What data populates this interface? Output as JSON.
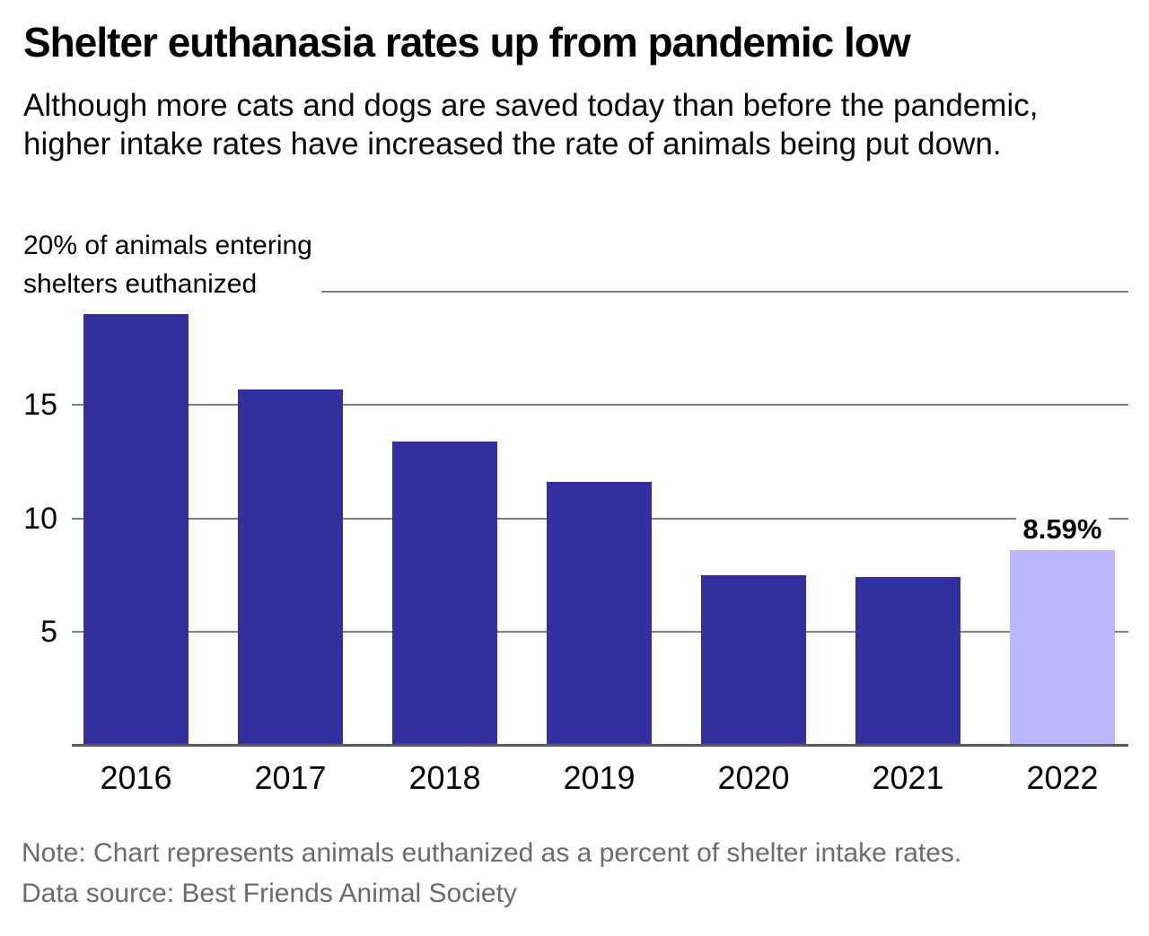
{
  "header": {
    "title": "Shelter euthanasia rates up from pandemic low",
    "subtitle": "Although more cats and dogs are saved today than before the pandemic, higher intake rates have increased the rate of animals being put down."
  },
  "footer": {
    "note": "Note: Chart represents animals euthanized as a percent of shelter intake rates.",
    "source": "Data source: Best Friends Animal Society"
  },
  "chart_data": {
    "type": "bar",
    "title": "Shelter euthanasia rates up from pandemic low",
    "categories": [
      "2016",
      "2017",
      "2018",
      "2019",
      "2020",
      "2021",
      "2022"
    ],
    "values": [
      19.0,
      15.7,
      13.4,
      11.6,
      7.5,
      7.4,
      8.59
    ],
    "highlight_index": 6,
    "highlight_label": "8.59%",
    "ylabel_lines": [
      "20% of animals entering",
      "shelters euthanized"
    ],
    "ylabel": "% of animals entering shelters euthanized",
    "xlabel": "",
    "ylim": [
      0,
      20
    ],
    "yticks_labeled": [
      15,
      10,
      5
    ],
    "gridline_values": [
      5,
      10,
      15,
      20
    ],
    "grid": "horizontal",
    "legend": "none",
    "colors": {
      "bar": "#3230a0",
      "highlight_bar": "#bab6fb",
      "gridline": "#7e7e7e",
      "axis_line": "#595959",
      "text": "#000000",
      "note_text": "#6b6b6b"
    }
  }
}
